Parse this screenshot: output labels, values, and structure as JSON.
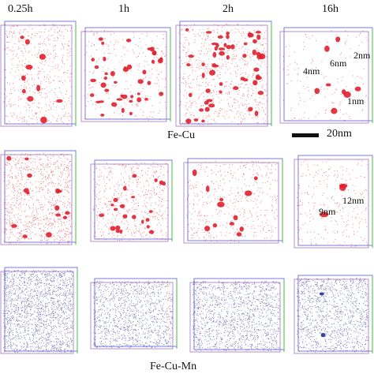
{
  "time_labels": [
    "0.25h",
    "1h",
    "2h",
    "16h"
  ],
  "row_labels": [
    "Fe-Cu",
    "Fe-Cu-Mn"
  ],
  "scale_bar": "20nm",
  "annotations": {
    "row1_panel4": [
      "2nm",
      "4nm",
      "6nm",
      "1nm"
    ],
    "row2_panel4": [
      "12nm",
      "9nm"
    ]
  },
  "colors": {
    "cu_atoms": "#e0202e",
    "mn_atoms": "#2a2f8f",
    "box_edge_a": "#7a7adf",
    "box_edge_b": "#3fbf3f",
    "box_edge_c": "#b68fcf"
  }
}
